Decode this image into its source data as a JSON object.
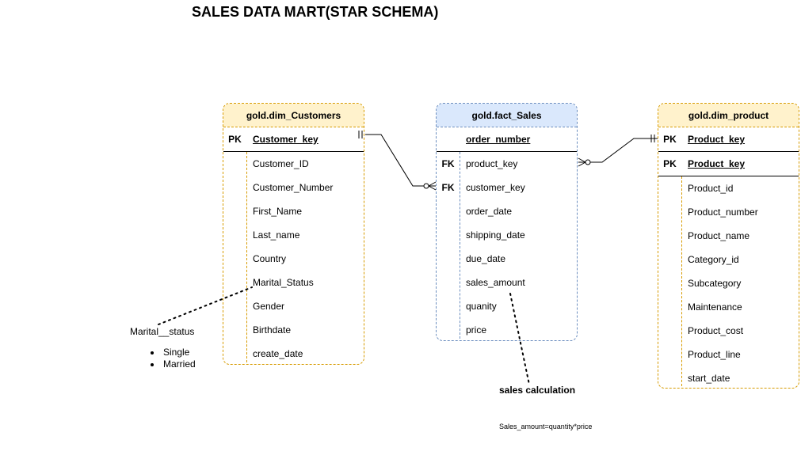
{
  "title": "SALES DATA MART(STAR SCHEMA)",
  "tables": {
    "customers": {
      "name": "gold.dim_Customers",
      "rows": [
        {
          "key": "PK",
          "field": "Customer_key"
        },
        {
          "key": "",
          "field": "Customer_ID"
        },
        {
          "key": "",
          "field": "Customer_Number"
        },
        {
          "key": "",
          "field": "First_Name"
        },
        {
          "key": "",
          "field": "Last_name"
        },
        {
          "key": "",
          "field": "Country"
        },
        {
          "key": "",
          "field": "Marital_Status"
        },
        {
          "key": "",
          "field": "Gender"
        },
        {
          "key": "",
          "field": "Birthdate"
        },
        {
          "key": "",
          "field": "create_date"
        }
      ]
    },
    "fact": {
      "name": "gold.fact_Sales",
      "rows": [
        {
          "key": "",
          "field": "order_number"
        },
        {
          "key": "FK",
          "field": "product_key"
        },
        {
          "key": "FK",
          "field": "customer_key"
        },
        {
          "key": "",
          "field": "order_date"
        },
        {
          "key": "",
          "field": "shipping_date"
        },
        {
          "key": "",
          "field": "due_date"
        },
        {
          "key": "",
          "field": "sales_amount"
        },
        {
          "key": "",
          "field": "quanity"
        },
        {
          "key": "",
          "field": "price"
        }
      ]
    },
    "product": {
      "name": "gold.dim_product",
      "rows": [
        {
          "key": "PK",
          "field": "Product_key"
        },
        {
          "key": "PK",
          "field": "Product_key"
        },
        {
          "key": "",
          "field": "Product_id"
        },
        {
          "key": "",
          "field": "Product_number"
        },
        {
          "key": "",
          "field": "Product_name"
        },
        {
          "key": "",
          "field": "Category_id"
        },
        {
          "key": "",
          "field": "Subcategory"
        },
        {
          "key": "",
          "field": "Maintenance"
        },
        {
          "key": "",
          "field": "Product_cost"
        },
        {
          "key": "",
          "field": "Product_line"
        },
        {
          "key": "",
          "field": "start_date"
        }
      ]
    }
  },
  "notes": {
    "marital_label": "Marital__status",
    "marital_values": [
      "Single",
      "Married"
    ],
    "sales_calc_label": "sales calculation",
    "sales_formula": "Sales_amount=quantity*price"
  },
  "colors": {
    "dim_header": "#fff2cc",
    "dim_border": "#d79b00",
    "fact_header": "#dae8fc",
    "fact_border": "#6c8ebf"
  }
}
